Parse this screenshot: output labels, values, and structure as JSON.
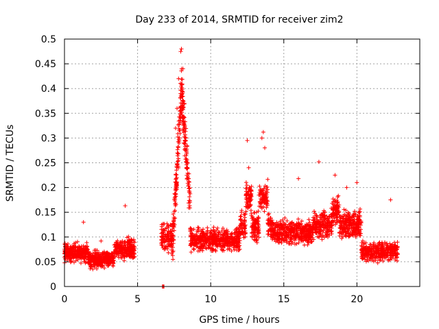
{
  "chart_data": {
    "type": "scatter",
    "title": "Day 233 of 2014, SRMTID for receiver zim2",
    "xlabel": "GPS time / hours",
    "ylabel": "SRMTID / TECUs",
    "xlim": [
      0,
      24.3
    ],
    "ylim": [
      0,
      0.5
    ],
    "x_ticks": [
      0,
      5,
      10,
      15,
      20
    ],
    "x_tick_labels": [
      "0",
      "5",
      "10",
      "15",
      "20"
    ],
    "y_ticks": [
      0,
      0.05,
      0.1,
      0.15,
      0.2,
      0.25,
      0.3,
      0.35,
      0.4,
      0.45,
      0.5
    ],
    "y_tick_labels": [
      "0",
      "0.05",
      "0.1",
      "0.15",
      "0.2",
      "0.25",
      "0.3",
      "0.35",
      "0.4",
      "0.45",
      "0.5"
    ],
    "grid": true,
    "marker": "plus",
    "marker_color": "#ff0000",
    "series": [
      {
        "name": "SRMTID",
        "segments": [
          {
            "x_start": 0.0,
            "x_end": 1.6,
            "center": 0.068,
            "spread": 0.025
          },
          {
            "x_start": 1.6,
            "x_end": 3.4,
            "center": 0.055,
            "spread": 0.022
          },
          {
            "x_start": 3.4,
            "x_end": 4.8,
            "center": 0.075,
            "spread": 0.03
          }
        ],
        "extra_points": [
          {
            "x": 4.15,
            "y": 0.163
          },
          {
            "x": 1.3,
            "y": 0.13
          },
          {
            "x": 2.5,
            "y": 0.092
          },
          {
            "x": 6.7,
            "y": 0.0
          },
          {
            "x": 6.75,
            "y": 0.0
          },
          {
            "x": 6.8,
            "y": 0.0
          },
          {
            "x": 7.6,
            "y": 0.32
          },
          {
            "x": 7.8,
            "y": 0.42
          },
          {
            "x": 7.95,
            "y": 0.475
          },
          {
            "x": 8.0,
            "y": 0.48
          },
          {
            "x": 8.1,
            "y": 0.44
          },
          {
            "x": 8.2,
            "y": 0.37
          },
          {
            "x": 7.7,
            "y": 0.36
          },
          {
            "x": 8.3,
            "y": 0.3
          },
          {
            "x": 12.5,
            "y": 0.295
          },
          {
            "x": 12.6,
            "y": 0.24
          },
          {
            "x": 13.6,
            "y": 0.312
          },
          {
            "x": 13.5,
            "y": 0.3
          },
          {
            "x": 13.7,
            "y": 0.28
          },
          {
            "x": 16.0,
            "y": 0.218
          },
          {
            "x": 17.4,
            "y": 0.252
          },
          {
            "x": 18.5,
            "y": 0.225
          },
          {
            "x": 19.3,
            "y": 0.2
          },
          {
            "x": 20.0,
            "y": 0.21
          },
          {
            "x": 22.3,
            "y": 0.175
          }
        ]
      }
    ]
  }
}
